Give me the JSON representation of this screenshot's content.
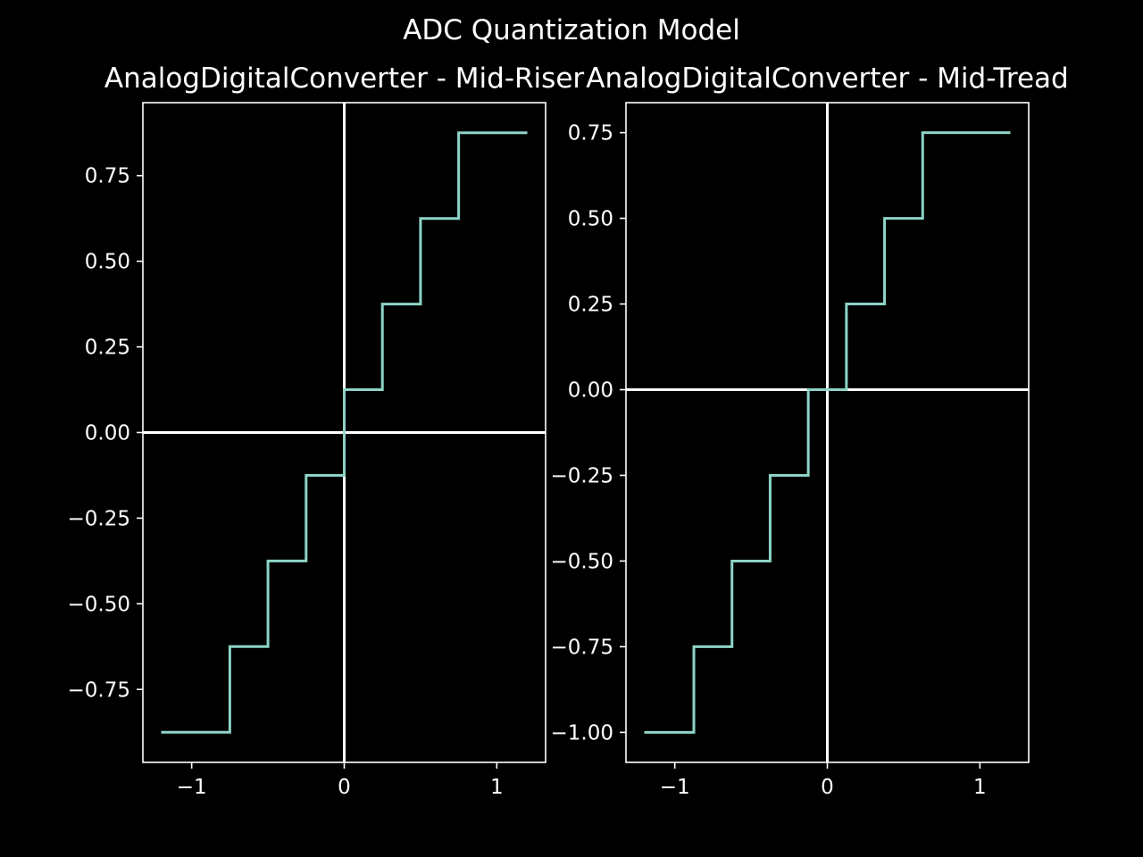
{
  "figure": {
    "suptitle": "ADC Quantization Model",
    "background": "#000000",
    "foreground": "#ffffff",
    "line_color": "#8dd3c7"
  },
  "chart_data": [
    {
      "type": "line",
      "step": "post",
      "title": "AnalogDigitalConverter - Mid-Riser",
      "xlabel": "",
      "ylabel": "",
      "xlim": [
        -1.32,
        1.32
      ],
      "ylim": [
        -0.963,
        0.963
      ],
      "xticks": [
        -1,
        0,
        1
      ],
      "xtick_labels": [
        "−1",
        "0",
        "1"
      ],
      "yticks": [
        -0.75,
        -0.5,
        -0.25,
        0.0,
        0.25,
        0.5,
        0.75
      ],
      "ytick_labels": [
        "−0.75",
        "−0.50",
        "−0.25",
        "0.00",
        "0.25",
        "0.50",
        "0.75"
      ],
      "reference_lines": {
        "x": 0,
        "y": 0
      },
      "grid": false,
      "series": [
        {
          "x": [
            -1.2,
            -0.75,
            -0.5,
            -0.25,
            0.0,
            0.25,
            0.5,
            0.75,
            1.2
          ],
          "y": [
            -0.875,
            -0.625,
            -0.375,
            -0.125,
            0.125,
            0.375,
            0.625,
            0.875,
            0.875
          ]
        }
      ]
    },
    {
      "type": "line",
      "step": "post",
      "title": "AnalogDigitalConverter - Mid-Tread",
      "xlabel": "",
      "ylabel": "",
      "xlim": [
        -1.32,
        1.32
      ],
      "ylim": [
        -1.0875,
        0.8375
      ],
      "xticks": [
        -1,
        0,
        1
      ],
      "xtick_labels": [
        "−1",
        "0",
        "1"
      ],
      "yticks": [
        -1.0,
        -0.75,
        -0.5,
        -0.25,
        0.0,
        0.25,
        0.5,
        0.75
      ],
      "ytick_labels": [
        "−1.00",
        "−0.75",
        "−0.50",
        "−0.25",
        "0.00",
        "0.25",
        "0.50",
        "0.75"
      ],
      "reference_lines": {
        "x": 0,
        "y": 0
      },
      "grid": false,
      "series": [
        {
          "x": [
            -1.2,
            -0.875,
            -0.625,
            -0.375,
            -0.125,
            0.125,
            0.375,
            0.625,
            1.2
          ],
          "y": [
            -1.0,
            -0.75,
            -0.5,
            -0.25,
            0.0,
            0.25,
            0.5,
            0.75,
            0.75
          ]
        }
      ]
    }
  ]
}
